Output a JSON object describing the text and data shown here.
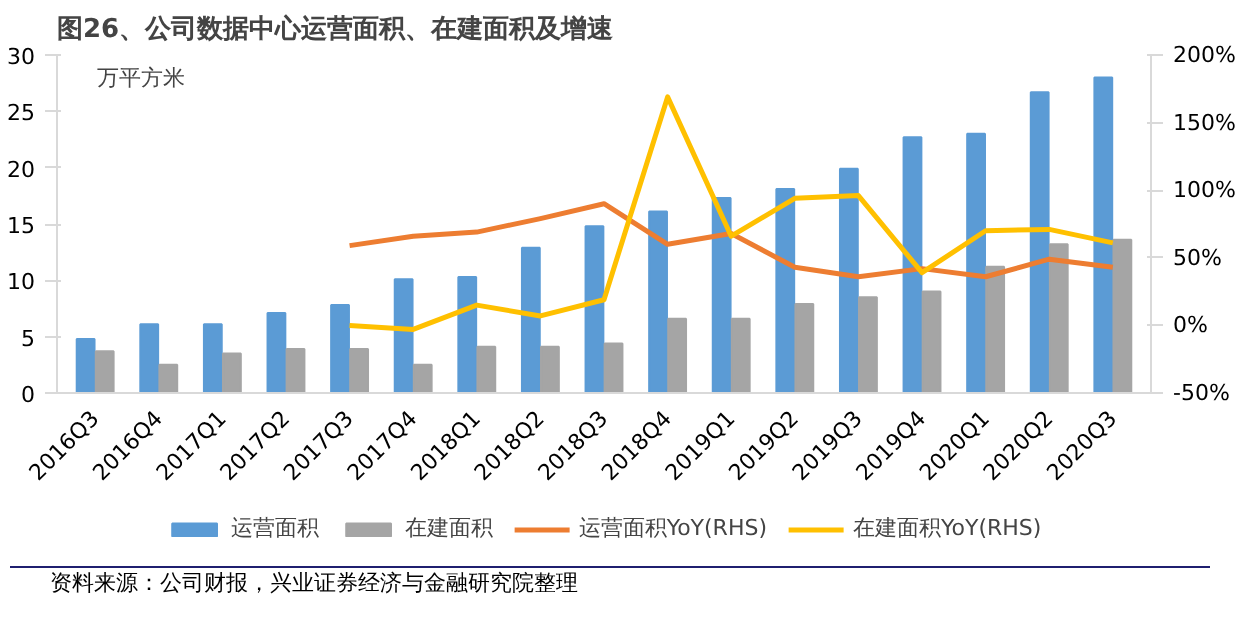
{
  "chart_data": {
    "type": "bar",
    "title": "图26、公司数据中心运营面积、在建面积及增速",
    "categories": [
      "2016Q3",
      "2016Q4",
      "2017Q1",
      "2017Q2",
      "2017Q3",
      "2017Q4",
      "2018Q1",
      "2018Q2",
      "2018Q3",
      "2018Q4",
      "2019Q1",
      "2019Q2",
      "2019Q3",
      "2019Q4",
      "2020Q1",
      "2020Q2",
      "2020Q3"
    ],
    "series": [
      {
        "name": "运营面积",
        "color": "#5b9bd5",
        "values": [
          4.8,
          6.1,
          6.1,
          7.1,
          7.8,
          10.1,
          10.3,
          12.9,
          14.8,
          16.1,
          17.3,
          18.1,
          19.9,
          22.7,
          23.0,
          26.7,
          28.0
        ]
      },
      {
        "name": "在建面积",
        "color": "#a5a5a5",
        "values": [
          3.7,
          2.5,
          3.5,
          3.9,
          3.9,
          2.5,
          4.1,
          4.1,
          4.4,
          6.6,
          6.6,
          7.9,
          8.5,
          9.0,
          11.2,
          13.2,
          13.6
        ]
      },
      {
        "name": "运营面积YoY(RHS)",
        "type": "line",
        "axis": "y2",
        "color": "#ed7d31",
        "values": [
          null,
          null,
          null,
          null,
          59,
          66,
          69,
          79,
          90,
          60,
          68,
          43,
          36,
          42,
          36,
          49,
          43
        ]
      },
      {
        "name": "在建面积YoY(RHS)",
        "type": "line",
        "axis": "y2",
        "color": "#ffc000",
        "values": [
          null,
          null,
          null,
          null,
          0,
          -3,
          15,
          7,
          19,
          169,
          66,
          94,
          96,
          39,
          70,
          71,
          61
        ]
      }
    ],
    "ylim": [
      0,
      30
    ],
    "yticks": [
      0,
      5,
      10,
      15,
      20,
      25,
      30
    ],
    "y2lim": [
      -50,
      200
    ],
    "y2ticks": [
      {
        "value": -50,
        "label": "-50%"
      },
      {
        "value": 0,
        "label": "0%"
      },
      {
        "value": 50,
        "label": "50%"
      },
      {
        "value": 100,
        "label": "100%"
      },
      {
        "value": 150,
        "label": "150%"
      },
      {
        "value": 200,
        "label": "200%"
      }
    ],
    "annotations": [
      "万平方米",
      "资料来源：公司财报，兴业证券经济与金融研究院整理"
    ],
    "legend": "bottom",
    "grid": false
  }
}
